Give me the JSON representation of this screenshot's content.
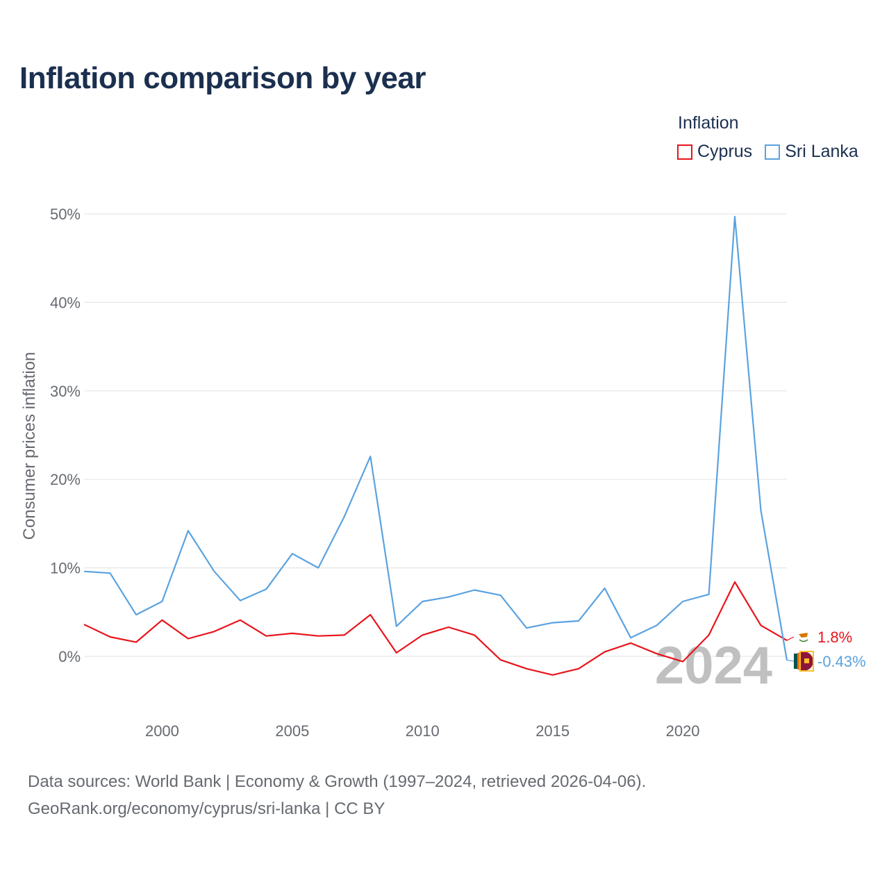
{
  "title": "Inflation comparison by year",
  "legend": {
    "title": "Inflation",
    "items": [
      {
        "label": "Cyprus",
        "color": "#e8141b"
      },
      {
        "label": "Sri Lanka",
        "color": "#5aa2e0"
      }
    ]
  },
  "footer": {
    "line1": "Data sources: World Bank | Economy & Growth (1997–2024, retrieved 2026-04-06).",
    "line2": "GeoRank.org/economy/cyprus/sri-lanka | CC BY"
  },
  "chart_data": {
    "type": "line",
    "title": "Inflation comparison by year",
    "xlabel": "",
    "ylabel": "Consumer prices inflation",
    "xlim": [
      1997,
      2024
    ],
    "ylim": [
      -5,
      50
    ],
    "grid": true,
    "legend_position": "top-right",
    "x": [
      1997,
      1998,
      1999,
      2000,
      2001,
      2002,
      2003,
      2004,
      2005,
      2006,
      2007,
      2008,
      2009,
      2010,
      2011,
      2012,
      2013,
      2014,
      2015,
      2016,
      2017,
      2018,
      2019,
      2020,
      2021,
      2022,
      2023,
      2024
    ],
    "x_ticks": [
      2000,
      2005,
      2010,
      2015,
      2020
    ],
    "x_tick_labels": [
      "2000",
      "2005",
      "2010",
      "2015",
      "2020"
    ],
    "y_ticks": [
      0,
      10,
      20,
      30,
      40,
      50
    ],
    "y_tick_labels": [
      "0%",
      "10%",
      "20%",
      "30%",
      "40%",
      "50%"
    ],
    "series": [
      {
        "name": "Cyprus",
        "color": "#e8141b",
        "values": [
          3.6,
          2.2,
          1.6,
          4.1,
          2.0,
          2.8,
          4.1,
          2.3,
          2.6,
          2.3,
          2.4,
          4.7,
          0.4,
          2.4,
          3.3,
          2.4,
          -0.4,
          -1.4,
          -2.1,
          -1.4,
          0.5,
          1.5,
          0.3,
          -0.6,
          2.4,
          8.4,
          3.5,
          1.8
        ],
        "end_label": "1.8%",
        "flag_icon": "cyprus-flag-icon"
      },
      {
        "name": "Sri Lanka",
        "color": "#5aa2e0",
        "values": [
          9.6,
          9.4,
          4.7,
          6.2,
          14.2,
          9.6,
          6.3,
          7.6,
          11.6,
          10.0,
          15.8,
          22.6,
          3.4,
          6.2,
          6.7,
          7.5,
          6.9,
          3.2,
          3.8,
          4.0,
          7.7,
          2.1,
          3.5,
          6.2,
          7.0,
          49.7,
          16.5,
          -0.43
        ],
        "end_label": "-0.43%",
        "flag_icon": "sri-lanka-flag-icon"
      }
    ],
    "current_year_label": "2024"
  }
}
